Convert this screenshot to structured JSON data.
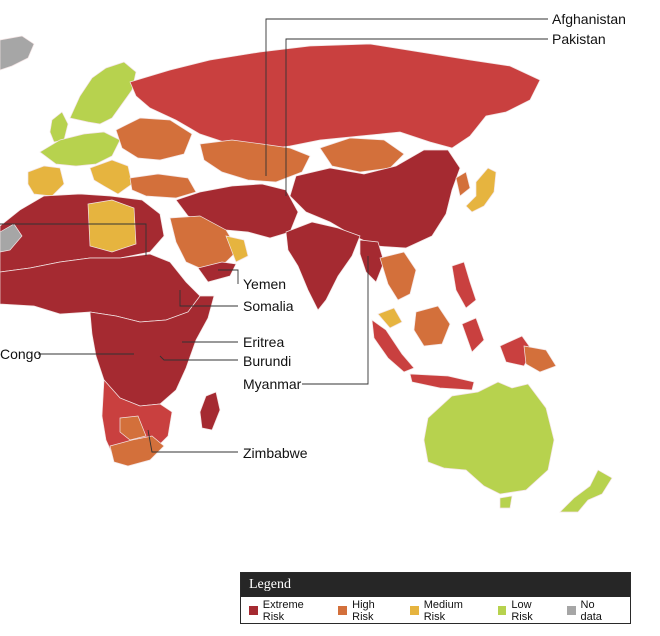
{
  "colors": {
    "extreme": "#a52a31",
    "high": "#d3703b",
    "medium": "#e6b43f",
    "low": "#b7d24e",
    "nodata": "#a6a6a6",
    "extreme_light": "#c9403f"
  },
  "callouts": {
    "afghanistan": "Afghanistan",
    "pakistan": "Pakistan",
    "yemen": "Yemen",
    "somalia": "Somalia",
    "eritrea": "Eritrea",
    "burundi": "Burundi",
    "myanmar": "Myanmar",
    "zimbabwe": "Zimbabwe",
    "congo": "Congo"
  },
  "legend": {
    "title": "Legend",
    "items": [
      {
        "label": "Extreme Risk",
        "color": "#a52a31"
      },
      {
        "label": "High Risk",
        "color": "#d3703b"
      },
      {
        "label": "Medium Risk",
        "color": "#e6b43f"
      },
      {
        "label": "Low Risk",
        "color": "#b7d24e"
      },
      {
        "label": "No data",
        "color": "#a6a6a6"
      }
    ]
  }
}
